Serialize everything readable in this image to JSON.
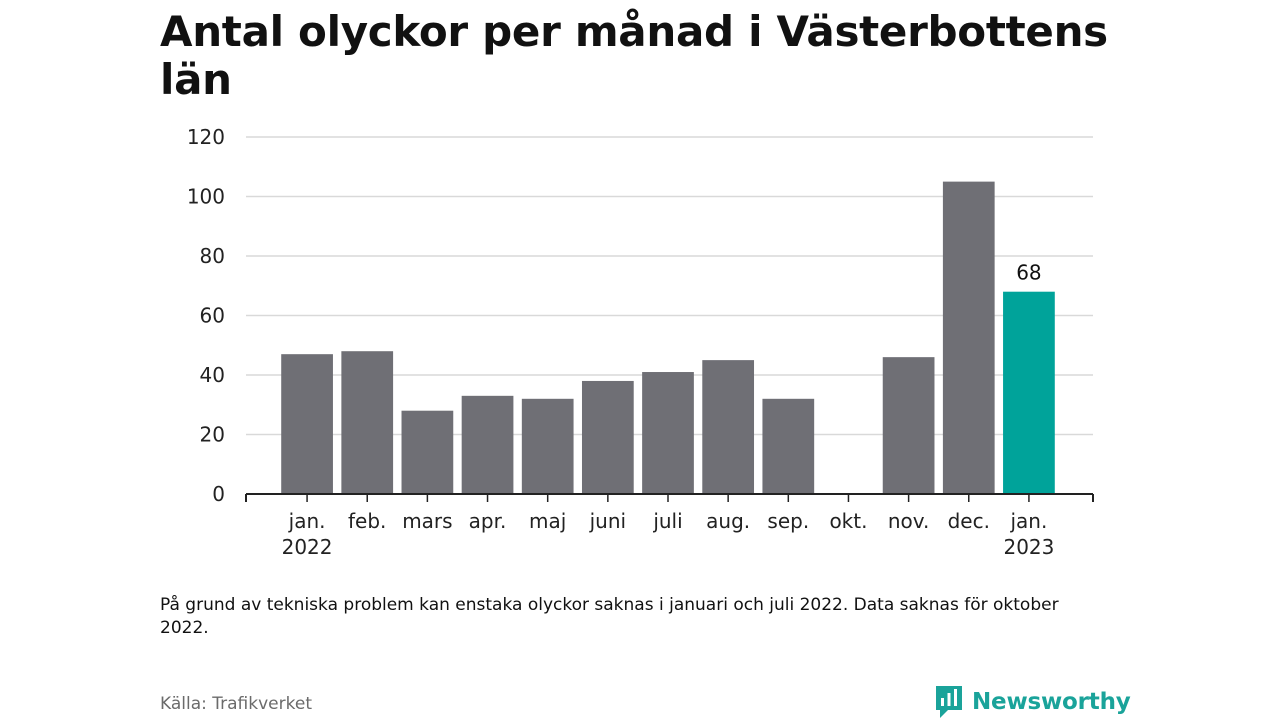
{
  "title": "Antal olyckor per månad i Västerbottens län",
  "footnote": "På grund av tekniska problem kan enstaka olyckor saknas i januari och juli 2022. Data saknas för oktober 2022.",
  "source": "Källa: Trafikverket",
  "brand": {
    "name": "Newsworthy",
    "icon": "newsworthy-logo-icon"
  },
  "colors": {
    "bar": "#6f6f75",
    "highlight": "#00a39a",
    "grid": "#d9d9d9",
    "axis": "#222222",
    "brand": "#1aa39a"
  },
  "chart_data": {
    "type": "bar",
    "title": "Antal olyckor per månad i Västerbottens län",
    "xlabel": "",
    "ylabel": "",
    "ylim": [
      0,
      120
    ],
    "yticks": [
      0,
      20,
      40,
      60,
      80,
      100,
      120
    ],
    "grid": true,
    "categories": [
      [
        "jan.",
        "2022"
      ],
      [
        "feb."
      ],
      [
        "mars"
      ],
      [
        "apr."
      ],
      [
        "maj"
      ],
      [
        "juni"
      ],
      [
        "juli"
      ],
      [
        "aug."
      ],
      [
        "sep."
      ],
      [
        "okt."
      ],
      [
        "nov."
      ],
      [
        "dec."
      ],
      [
        "jan.",
        "2023"
      ]
    ],
    "values": [
      47,
      48,
      28,
      33,
      32,
      38,
      41,
      45,
      32,
      null,
      46,
      105,
      68
    ],
    "highlight_index": 12,
    "data_labels": [
      {
        "index": 12,
        "text": "68"
      }
    ]
  }
}
